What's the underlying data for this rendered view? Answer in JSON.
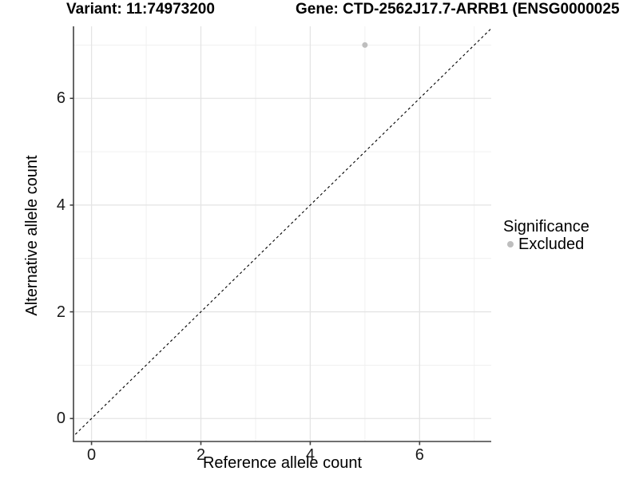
{
  "chart_data": {
    "type": "scatter",
    "titles": [
      "Variant: 11:74973200",
      "Gene: CTD-2562J17.7-ARRB1 (ENSG0000025"
    ],
    "xlabel": "Reference allele count",
    "ylabel": "Alternative allele count",
    "x_ticks": [
      0,
      2,
      4,
      6
    ],
    "y_ticks": [
      0,
      2,
      4,
      6
    ],
    "x_minor_ticks": [
      1,
      3,
      5,
      7
    ],
    "y_minor_ticks": [
      1,
      3,
      5,
      7
    ],
    "xlim": [
      -0.33,
      7.31
    ],
    "ylim": [
      -0.43,
      7.35
    ],
    "grid": true,
    "legend": {
      "position": "right",
      "title": "Significance",
      "items": [
        {
          "label": "Excluded",
          "color": "#bebebe"
        }
      ]
    },
    "series": [
      {
        "name": "Excluded",
        "color": "#bebebe",
        "points": [
          {
            "x": 5,
            "y": 7
          }
        ]
      }
    ],
    "reference_line": {
      "kind": "identity",
      "slope": 1,
      "intercept": 0,
      "style": "dashed",
      "color": "#000000"
    },
    "style": {
      "background": "#ffffff",
      "major_grid_color": "#e4e4e4",
      "minor_grid_color": "#efefef",
      "axis_line_color": "#404040"
    }
  }
}
